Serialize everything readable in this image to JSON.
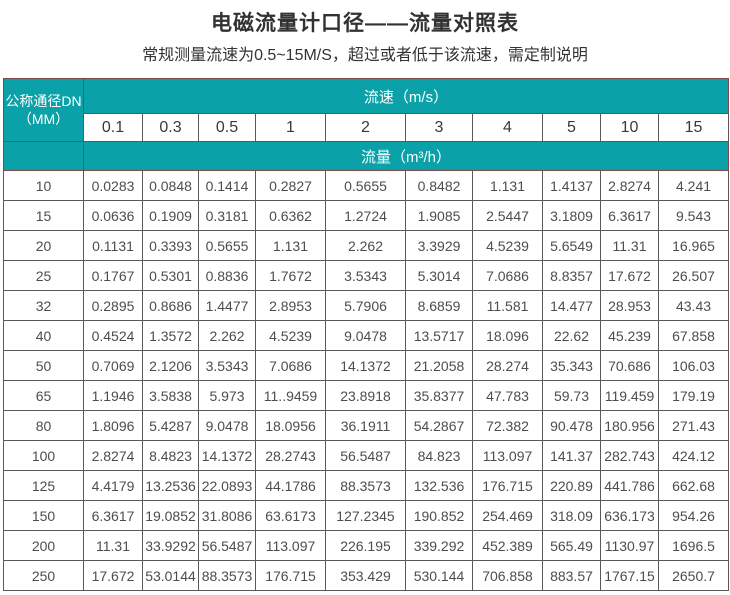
{
  "page": {
    "title": "电磁流量计口径——流量对照表",
    "subtitle": "常规测量流速为0.5~15M/S，超过或者低于该流速，需定制说明"
  },
  "colors": {
    "teal_header": "#0aa2a8",
    "teal_border": "#7d4b4b",
    "cell_border": "#595959",
    "data_text": "#4d4d4d"
  },
  "table": {
    "corner_header": {
      "line1": "公称通径DN",
      "line2": "（MM）"
    },
    "velocity_header": "流速（m/s）",
    "flow_header": "流量（m³/h）",
    "velocity_columns": [
      "0.1",
      "0.3",
      "0.5",
      "1",
      "2",
      "3",
      "4",
      "5",
      "10",
      "15"
    ],
    "rows": [
      {
        "dn": "10",
        "values": [
          "0.0283",
          "0.0848",
          "0.1414",
          "0.2827",
          "0.5655",
          "0.8482",
          "1.131",
          "1.4137",
          "2.8274",
          "4.241"
        ]
      },
      {
        "dn": "15",
        "values": [
          "0.0636",
          "0.1909",
          "0.3181",
          "0.6362",
          "1.2724",
          "1.9085",
          "2.5447",
          "3.1809",
          "6.3617",
          "9.543"
        ]
      },
      {
        "dn": "20",
        "values": [
          "0.1131",
          "0.3393",
          "0.5655",
          "1.131",
          "2.262",
          "3.3929",
          "4.5239",
          "5.6549",
          "11.31",
          "16.965"
        ]
      },
      {
        "dn": "25",
        "values": [
          "0.1767",
          "0.5301",
          "0.8836",
          "1.7672",
          "3.5343",
          "5.3014",
          "7.0686",
          "8.8357",
          "17.672",
          "26.507"
        ]
      },
      {
        "dn": "32",
        "values": [
          "0.2895",
          "0.8686",
          "1.4477",
          "2.8953",
          "5.7906",
          "8.6859",
          "11.581",
          "14.477",
          "28.953",
          "43.43"
        ]
      },
      {
        "dn": "40",
        "values": [
          "0.4524",
          "1.3572",
          "2.262",
          "4.5239",
          "9.0478",
          "13.5717",
          "18.096",
          "22.62",
          "45.239",
          "67.858"
        ]
      },
      {
        "dn": "50",
        "values": [
          "0.7069",
          "2.1206",
          "3.5343",
          "7.0686",
          "14.1372",
          "21.2058",
          "28.274",
          "35.343",
          "70.686",
          "106.03"
        ]
      },
      {
        "dn": "65",
        "values": [
          "1.1946",
          "3.5838",
          "5.973",
          "11..9459",
          "23.8918",
          "35.8377",
          "47.783",
          "59.73",
          "119.459",
          "179.19"
        ]
      },
      {
        "dn": "80",
        "values": [
          "1.8096",
          "5.4287",
          "9.0478",
          "18.0956",
          "36.1911",
          "54.2867",
          "72.382",
          "90.478",
          "180.956",
          "271.43"
        ]
      },
      {
        "dn": "100",
        "values": [
          "2.8274",
          "8.4823",
          "14.1372",
          "28.2743",
          "56.5487",
          "84.823",
          "113.097",
          "141.37",
          "282.743",
          "424.12"
        ]
      },
      {
        "dn": "125",
        "values": [
          "4.4179",
          "13.2536",
          "22.0893",
          "44.1786",
          "88.3573",
          "132.536",
          "176.715",
          "220.89",
          "441.786",
          "662.68"
        ]
      },
      {
        "dn": "150",
        "values": [
          "6.3617",
          "19.0852",
          "31.8086",
          "63.6173",
          "127.2345",
          "190.852",
          "254.469",
          "318.09",
          "636.173",
          "954.26"
        ]
      },
      {
        "dn": "200",
        "values": [
          "11.31",
          "33.9292",
          "56.5487",
          "113.097",
          "226.195",
          "339.292",
          "452.389",
          "565.49",
          "1130.97",
          "1696.5"
        ]
      },
      {
        "dn": "250",
        "values": [
          "17.672",
          "53.0144",
          "88.3573",
          "176.715",
          "353.429",
          "530.144",
          "706.858",
          "883.57",
          "1767.15",
          "2650.7"
        ]
      }
    ]
  }
}
